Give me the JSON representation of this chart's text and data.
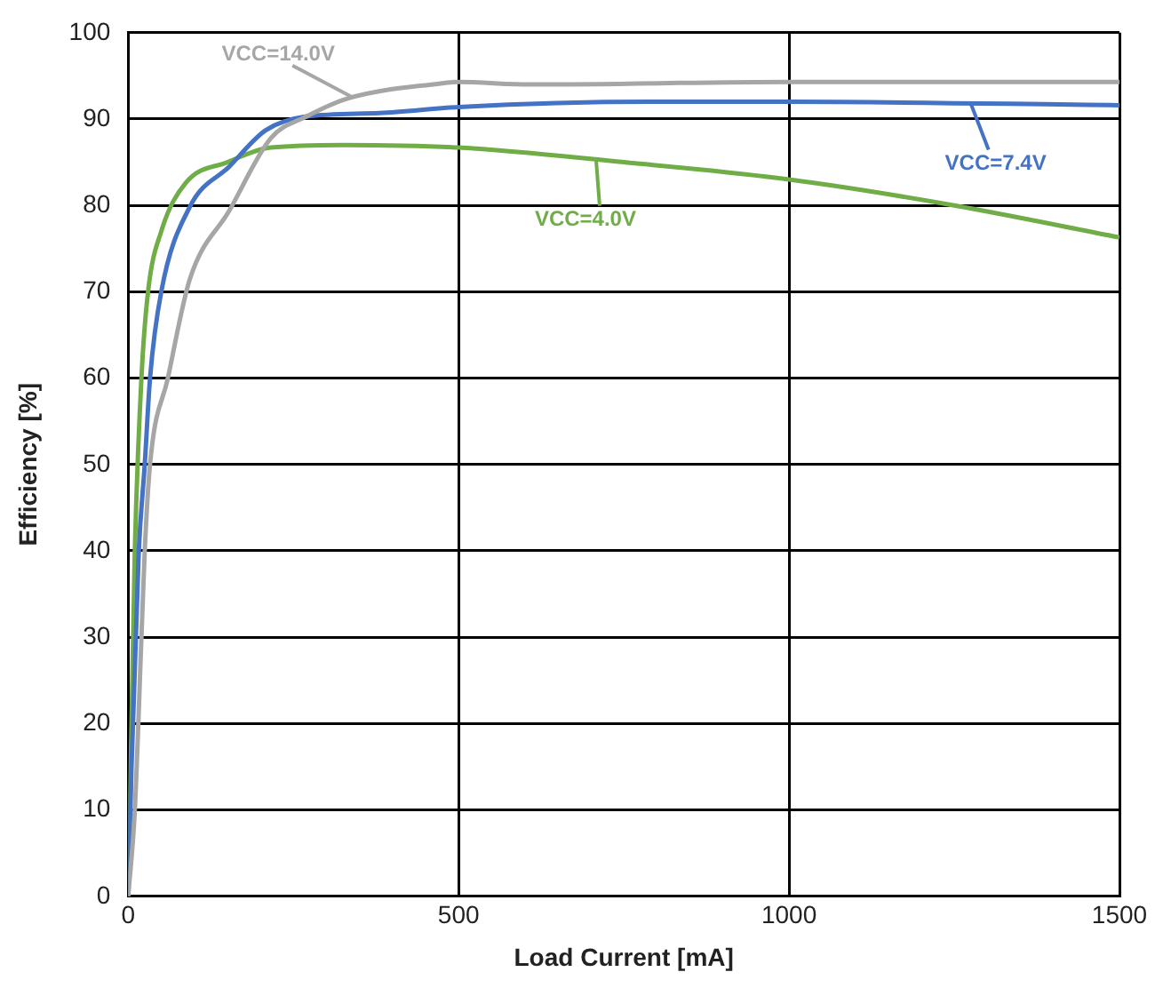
{
  "chart_data": {
    "type": "line",
    "xlabel": "Load Current [mA]",
    "ylabel": "Efficiency [%]",
    "xlim": [
      0,
      1500
    ],
    "xticks": [
      0,
      500,
      1000,
      1500
    ],
    "ylim": [
      0,
      100
    ],
    "yticks": [
      0,
      10,
      20,
      30,
      40,
      50,
      60,
      70,
      80,
      90,
      100
    ],
    "grid": true,
    "legend": false,
    "marker": "none",
    "line_style": "solid",
    "series": [
      {
        "color": "#a6a6a6",
        "x": [
          0,
          10,
          20,
          25,
          33,
          60,
          93,
          153,
          216,
          270,
          333,
          470,
          500,
          607,
          1000,
          1500
        ],
        "values": [
          0,
          10,
          30,
          40,
          50,
          60,
          71.4,
          79.4,
          87.8,
          90.3,
          92.4,
          94.1,
          94.3,
          94,
          94.3,
          94.3
        ]
      },
      {
        "color": "#4472c4",
        "x": [
          0,
          5,
          16,
          25,
          33,
          50,
          93,
          153,
          208,
          270,
          380,
          500,
          790,
          1000,
          1500
        ],
        "values": [
          0,
          15,
          40,
          50,
          60,
          70,
          79.8,
          84.5,
          88.7,
          90.3,
          90.7,
          91.4,
          92,
          92,
          91.6
        ]
      },
      {
        "color": "#70ad47",
        "x": [
          0,
          5,
          10,
          20,
          30,
          50,
          87,
          150,
          216,
          325,
          500,
          750,
          1000,
          1250,
          1500
        ],
        "values": [
          0,
          20,
          40,
          60,
          70,
          77,
          82.6,
          85,
          86.7,
          87,
          86.7,
          85,
          83,
          80,
          76.3
        ]
      }
    ],
    "annotations": [
      {
        "text": "VCC=14.0V",
        "x": 340,
        "y": 92.5
      },
      {
        "text": "VCC=7.4V",
        "x": 1275,
        "y": 91.8
      },
      {
        "text": "VCC=4.0V",
        "x": 708,
        "y": 85.3
      }
    ]
  }
}
